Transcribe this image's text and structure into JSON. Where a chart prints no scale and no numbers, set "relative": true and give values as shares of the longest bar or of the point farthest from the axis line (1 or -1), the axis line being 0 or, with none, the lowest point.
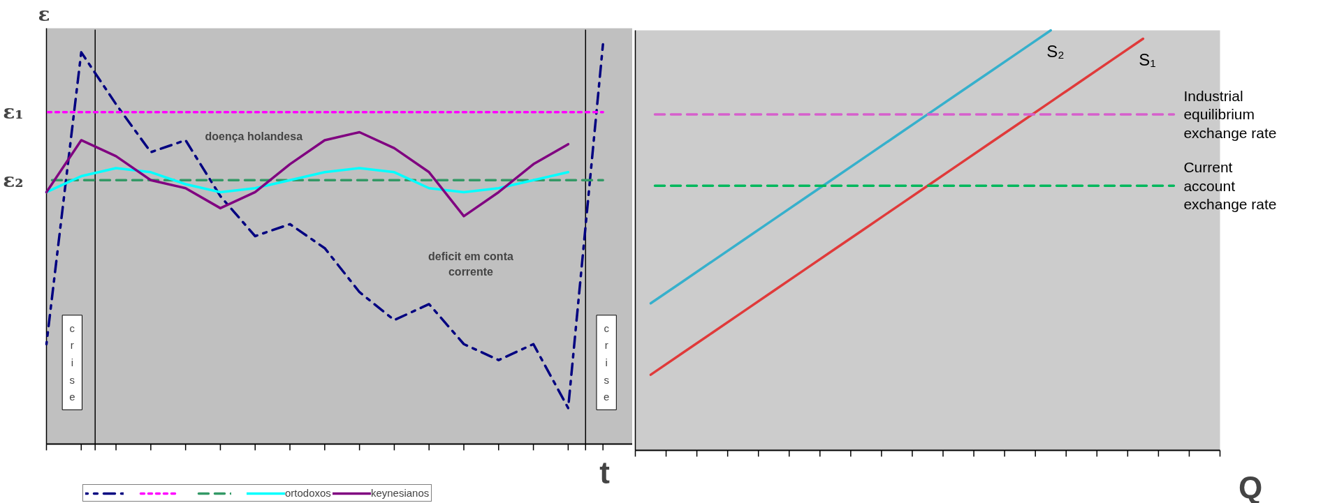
{
  "chart_data": [
    {
      "type": "line",
      "relative": true,
      "ylabel": "ε",
      "xlabel": "t",
      "grid": false,
      "legend": "bottom",
      "categories": [
        null,
        null,
        null,
        null,
        null,
        null,
        null,
        null,
        null,
        null,
        null,
        null,
        null,
        null,
        null,
        null,
        null
      ],
      "series": [
        {
          "color": "#000080",
          "line_style": "dashdot",
          "values": [
            0.25,
            0.98,
            0.85,
            0.73,
            0.76,
            0.62,
            0.52,
            0.55,
            0.49,
            0.38,
            0.31,
            0.35,
            0.25,
            0.21,
            0.25,
            0.09,
            1.0
          ]
        },
        {
          "color": "#ff00ff",
          "line_style": "dotted",
          "values": [
            0.83,
            0.83,
            0.83,
            0.83,
            0.83,
            0.83,
            0.83,
            0.83,
            0.83,
            0.83,
            0.83,
            0.83,
            0.83,
            0.83,
            0.83,
            0.83,
            0.83
          ]
        },
        {
          "color": "#339966",
          "line_style": "dashed",
          "values": [
            0.66,
            0.66,
            0.66,
            0.66,
            0.66,
            0.66,
            0.66,
            0.66,
            0.66,
            0.66,
            0.66,
            0.66,
            0.66,
            0.66,
            0.66,
            0.66,
            0.66
          ]
        },
        {
          "name": "ortodoxos",
          "color": "#00ffff",
          "line_style": "solid",
          "values": [
            0.63,
            0.67,
            0.69,
            0.68,
            0.65,
            0.63,
            0.64,
            0.66,
            0.68,
            0.69,
            0.68,
            0.64,
            0.63,
            0.64,
            0.66,
            0.68,
            null
          ]
        },
        {
          "name": "keynesianos",
          "color": "#800080",
          "line_style": "solid",
          "values": [
            0.63,
            0.76,
            0.72,
            0.66,
            0.64,
            0.59,
            0.63,
            0.7,
            0.76,
            0.78,
            0.74,
            0.68,
            0.57,
            0.63,
            0.7,
            0.75,
            null
          ]
        }
      ],
      "annotations": [
        "ε₁",
        "ε₂",
        "doença holandesa",
        "deficit em conta corrente",
        "crise",
        "crise"
      ]
    },
    {
      "type": "line",
      "relative": true,
      "xlabel": "Q",
      "grid": false,
      "legend": false,
      "categories": [
        null,
        null,
        null,
        null,
        null,
        null,
        null,
        null,
        null,
        null,
        null,
        null,
        null,
        null,
        null,
        null,
        null,
        null,
        null
      ],
      "series": [
        {
          "name": "S₂",
          "color": "#36b0cc",
          "line_style": "solid",
          "values": [
            0.35,
            0.4,
            0.45,
            0.5,
            0.55,
            0.6,
            0.65,
            0.7,
            0.75,
            0.8,
            0.85,
            0.9,
            0.95,
            1.0,
            null,
            null,
            null,
            null,
            null
          ]
        },
        {
          "name": "S₁",
          "color": "#e03a3a",
          "line_style": "solid",
          "values": [
            0.18,
            0.23,
            0.28,
            0.33,
            0.38,
            0.43,
            0.48,
            0.53,
            0.58,
            0.63,
            0.68,
            0.73,
            0.78,
            0.83,
            0.88,
            0.93,
            0.98,
            null,
            null
          ]
        },
        {
          "name": "Industrial equilibrium exchange rate",
          "color": "#d65fcc",
          "line_style": "dashed",
          "values": [
            0.8,
            0.8,
            0.8,
            0.8,
            0.8,
            0.8,
            0.8,
            0.8,
            0.8,
            0.8,
            0.8,
            0.8,
            0.8,
            0.8,
            0.8,
            0.8,
            0.8,
            0.8,
            null
          ]
        },
        {
          "name": "Current account exchange rate",
          "color": "#00b85c",
          "line_style": "dashed",
          "values": [
            0.63,
            0.63,
            0.63,
            0.63,
            0.63,
            0.63,
            0.63,
            0.63,
            0.63,
            0.63,
            0.63,
            0.63,
            0.63,
            0.63,
            0.63,
            0.63,
            0.63,
            0.63,
            null
          ]
        }
      ]
    }
  ]
}
